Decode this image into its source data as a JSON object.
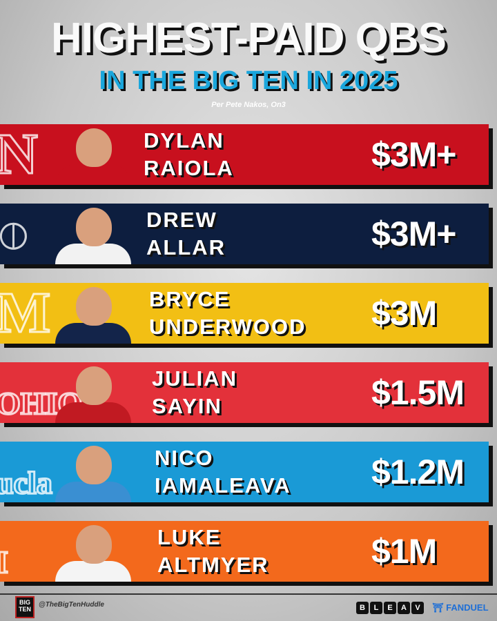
{
  "header": {
    "title": "HIGHEST-PAID QBS",
    "subtitle": "IN THE BIG TEN IN 2025",
    "source": "Per Pete Nakos, On3"
  },
  "players": [
    {
      "first": "DYLAN",
      "last": "RAIOLA",
      "salary": "$3M+",
      "school_logo": "N",
      "color": "#c8101e",
      "jersey": "#c8101e"
    },
    {
      "first": "DREW",
      "last": "ALLAR",
      "salary": "$3M+",
      "school_logo": "PSU lion",
      "color": "#0d1e3f",
      "jersey": "#f2f2f2"
    },
    {
      "first": "BRYCE",
      "last": "UNDERWOOD",
      "salary": "$3M",
      "school_logo": "M",
      "color": "#f2bf14",
      "jersey": "#13244a"
    },
    {
      "first": "JULIAN",
      "last": "SAYIN",
      "salary": "$1.5M",
      "school_logo": "OHIO STATE",
      "color": "#e3313a",
      "jersey": "#c11a22"
    },
    {
      "first": "NICO",
      "last": "IAMALEAVA",
      "salary": "$1.2M",
      "school_logo": "UCLA",
      "color": "#1a9ad6",
      "jersey": "#3a8fd2"
    },
    {
      "first": "LUKE",
      "last": "ALTMYER",
      "salary": "$1M",
      "school_logo": "I",
      "color": "#f3691c",
      "jersey": "#f4f4f4"
    }
  ],
  "footer": {
    "handle": "@TheBigTenHuddle",
    "brand_logo": "BIG TEN Huddle",
    "sponsor1": [
      "B",
      "L",
      "E",
      "A",
      "V"
    ],
    "sponsor2": "FANDUEL"
  }
}
